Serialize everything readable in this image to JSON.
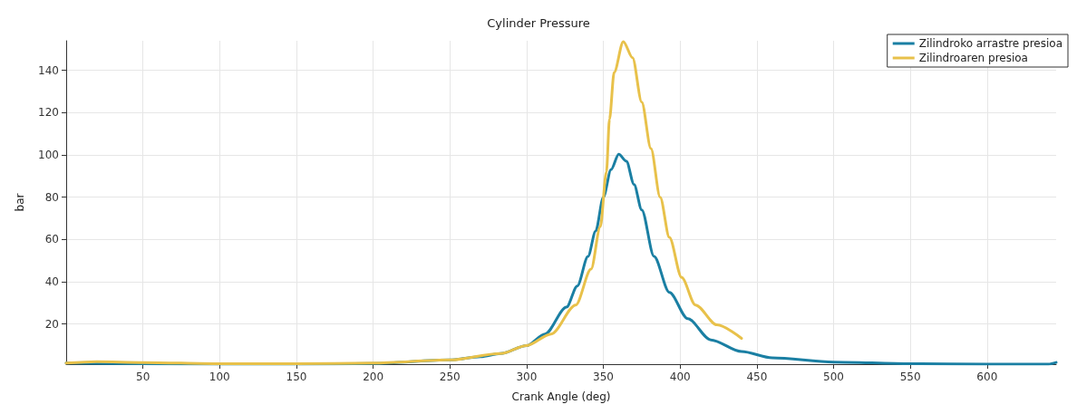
{
  "chart_data": {
    "type": "line",
    "title": "Cylinder Pressure",
    "xlabel": "Crank Angle (deg)",
    "ylabel": "bar",
    "xlim": [
      0,
      645
    ],
    "ylim": [
      1,
      154
    ],
    "xticks": [
      50,
      100,
      150,
      200,
      250,
      300,
      350,
      400,
      450,
      500,
      550,
      600
    ],
    "yticks": [
      20,
      40,
      60,
      80,
      100,
      120,
      140
    ],
    "grid": true,
    "legend": "top right",
    "marker": "none",
    "line_style": "solid",
    "series": [
      {
        "name": "Zilindroko arrastre presioa",
        "color": "#1a7fa3",
        "x": [
          0,
          50,
          100,
          150,
          200,
          250,
          270,
          283,
          300,
          312,
          326,
          333,
          340,
          345,
          350,
          355,
          360,
          365,
          370,
          375,
          383,
          393,
          405,
          420,
          440,
          460,
          500,
          550,
          600,
          640,
          645
        ],
        "values": [
          1.5,
          1.2,
          1,
          1,
          1.3,
          3,
          4.5,
          6,
          9.8,
          15.3,
          28,
          38,
          52,
          64,
          80,
          93,
          100.3,
          97,
          86,
          74,
          52,
          35,
          22.5,
          12.5,
          7,
          4,
          2,
          1.2,
          1,
          1,
          1.8
        ]
      },
      {
        "name": "Zilindroaren presioa",
        "color": "#e8c14a",
        "x": [
          0,
          20,
          50,
          100,
          150,
          200,
          250,
          283,
          300,
          316,
          332,
          342,
          348,
          352,
          354,
          357,
          363,
          369,
          375,
          381,
          387,
          393,
          401,
          410,
          424,
          440
        ],
        "values": [
          1.5,
          2.2,
          1.8,
          1.2,
          1.2,
          1.5,
          3,
          6,
          9.8,
          15.3,
          29,
          46,
          66,
          92,
          117,
          139,
          153.6,
          146,
          125,
          103,
          80,
          61,
          42,
          29,
          19.6,
          13.2
        ]
      }
    ]
  }
}
